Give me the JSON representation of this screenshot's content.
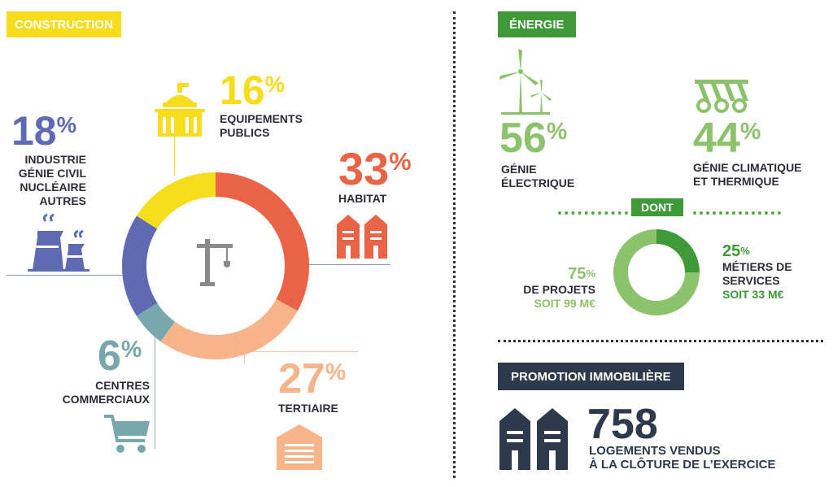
{
  "construction": {
    "tag": "CONSTRUCTION",
    "items": {
      "equipements": {
        "value": "16",
        "pct": "%",
        "label1": "EQUIPEMENTS",
        "label2": "PUBLICS"
      },
      "industrie": {
        "value": "18",
        "pct": "%",
        "label1": "INDUSTRIE",
        "label2": "GÉNIE CIVIL",
        "label3": "NUCLÉAIRE",
        "label4": "AUTRES"
      },
      "habitat": {
        "value": "33",
        "pct": "%",
        "label1": "HABITAT"
      },
      "centres": {
        "value": "6",
        "pct": "%",
        "label1": "CENTRES",
        "label2": "COMMERCIAUX"
      },
      "tertiaire": {
        "value": "27",
        "pct": "%",
        "label1": "TERTIAIRE"
      }
    }
  },
  "energie": {
    "tag": "ÉNERGIE",
    "electrique": {
      "value": "56",
      "pct": "%",
      "label1": "GÉNIE",
      "label2": "ÉLECTRIQUE"
    },
    "climatique": {
      "value": "44",
      "pct": "%",
      "label1": "GÉNIE CLIMATIQUE",
      "label2": "ET THERMIQUE"
    },
    "dont": "DONT",
    "projets": {
      "value": "75",
      "pct": "%",
      "label1": "DE PROJETS",
      "sub": "SOIT 99 M€"
    },
    "services": {
      "value": "25",
      "pct": "%",
      "label1": "MÉTIERS DE",
      "label2": "SERVICES",
      "sub": "SOIT 33 M€"
    }
  },
  "promotion": {
    "tag": "PROMOTION IMMOBILIÈRE",
    "value": "758",
    "label1": "LOGEMENTS VENDUS",
    "label2": "À LA CLÔTURE DE L’EXERCICE"
  },
  "colors": {
    "yellow": "#f7dc1c",
    "red": "#eb6347",
    "peach": "#f7b38a",
    "teal": "#77a8ad",
    "blue": "#5e6bb3",
    "green": "#3e9a39",
    "lightgreen": "#8cc26b",
    "navy": "#2d3a4c"
  },
  "chart_data": [
    {
      "type": "pie",
      "title": "CONSTRUCTION",
      "categories": [
        "HABITAT",
        "TERTIAIRE",
        "CENTRES COMMERCIAUX",
        "INDUSTRIE GÉNIE CIVIL NUCLÉAIRE AUTRES",
        "EQUIPEMENTS PUBLICS"
      ],
      "values": [
        33,
        27,
        6,
        18,
        16
      ],
      "colors": [
        "#eb6347",
        "#f7b38a",
        "#77a8ad",
        "#5e6bb3",
        "#f7dc1c"
      ]
    },
    {
      "type": "pie",
      "title": "DONT",
      "categories": [
        "MÉTIERS DE SERVICES",
        "DE PROJETS"
      ],
      "values": [
        25,
        75
      ],
      "colors": [
        "#3e9a39",
        "#8cc26b"
      ]
    }
  ]
}
